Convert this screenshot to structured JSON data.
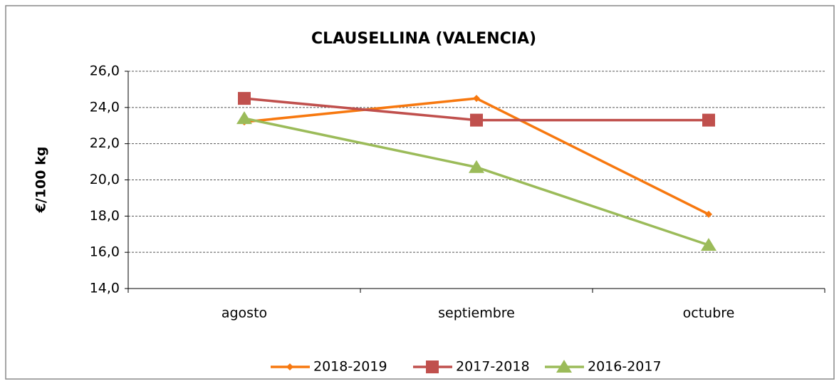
{
  "chart_data": {
    "type": "line",
    "title": "CLAUSELLINA (VALENCIA)",
    "y_label": "€/100 kg",
    "categories": [
      "agosto",
      "septiembre",
      "octubre"
    ],
    "series": [
      {
        "name": "2018-2019",
        "color": "#f7780f",
        "marker": "diamond",
        "values": [
          23.2,
          24.5,
          18.1
        ]
      },
      {
        "name": "2017-2018",
        "color": "#c0504d",
        "marker": "square",
        "values": [
          24.5,
          23.3,
          23.3
        ]
      },
      {
        "name": "2016-2017",
        "color": "#9bbb59",
        "marker": "triangle",
        "values": [
          23.4,
          20.7,
          16.4
        ]
      }
    ],
    "ylim": [
      14,
      26
    ],
    "yticks": [
      {
        "value": 14,
        "label": "14,0"
      },
      {
        "value": 16,
        "label": "16,0"
      },
      {
        "value": 18,
        "label": "18,0"
      },
      {
        "value": 20,
        "label": "20,0"
      },
      {
        "value": 22,
        "label": "22,0"
      },
      {
        "value": 24,
        "label": "24,0"
      },
      {
        "value": 26,
        "label": "26,0"
      }
    ],
    "grid": true,
    "legend": "bottom"
  }
}
